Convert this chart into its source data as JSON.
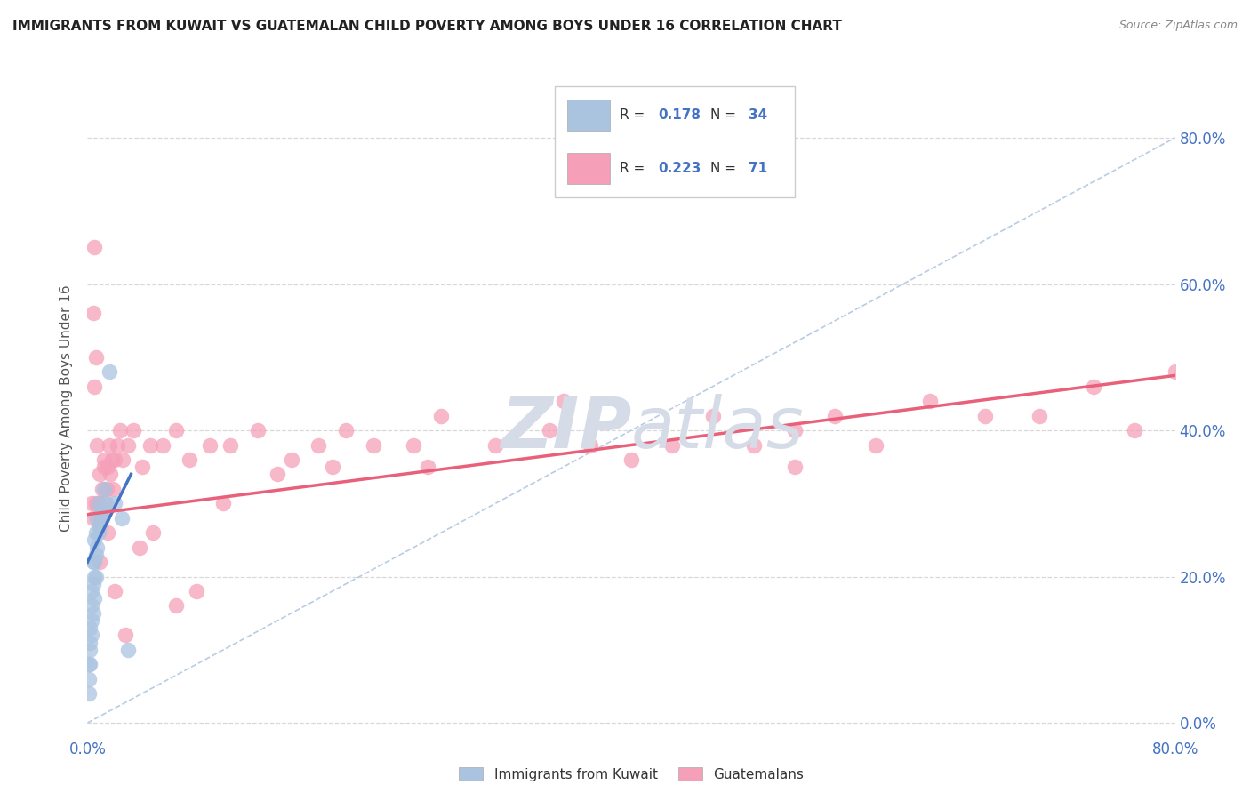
{
  "title": "IMMIGRANTS FROM KUWAIT VS GUATEMALAN CHILD POVERTY AMONG BOYS UNDER 16 CORRELATION CHART",
  "source": "Source: ZipAtlas.com",
  "ylabel": "Child Poverty Among Boys Under 16",
  "ytick_labels": [
    "0.0%",
    "20.0%",
    "40.0%",
    "60.0%",
    "80.0%"
  ],
  "ytick_values": [
    0.0,
    0.2,
    0.4,
    0.6,
    0.8
  ],
  "xtick_labels": [
    "0.0%",
    "80.0%"
  ],
  "xtick_values": [
    0.0,
    0.8
  ],
  "xlim": [
    0.0,
    0.8
  ],
  "ylim": [
    -0.02,
    0.88
  ],
  "color_kuwait": "#aac4e0",
  "color_guatemalan": "#f5a0b8",
  "line_color_kuwait": "#4472c4",
  "line_color_guatemalan": "#e8607a",
  "dashed_line_color": "#b8cce4",
  "grid_color": "#d8d8d8",
  "watermark_color": "#d5dce8",
  "kuwait_x": [
    0.001,
    0.001,
    0.001,
    0.002,
    0.002,
    0.002,
    0.002,
    0.003,
    0.003,
    0.003,
    0.003,
    0.004,
    0.004,
    0.004,
    0.005,
    0.005,
    0.005,
    0.005,
    0.006,
    0.006,
    0.006,
    0.007,
    0.007,
    0.008,
    0.008,
    0.009,
    0.01,
    0.011,
    0.012,
    0.014,
    0.016,
    0.02,
    0.025,
    0.03
  ],
  "kuwait_y": [
    0.04,
    0.06,
    0.08,
    0.08,
    0.1,
    0.11,
    0.13,
    0.12,
    0.14,
    0.16,
    0.18,
    0.15,
    0.19,
    0.22,
    0.17,
    0.2,
    0.22,
    0.25,
    0.2,
    0.23,
    0.26,
    0.24,
    0.28,
    0.26,
    0.3,
    0.27,
    0.29,
    0.28,
    0.32,
    0.3,
    0.48,
    0.3,
    0.28,
    0.1
  ],
  "guatemalan_x": [
    0.003,
    0.004,
    0.005,
    0.005,
    0.006,
    0.007,
    0.008,
    0.009,
    0.01,
    0.011,
    0.012,
    0.013,
    0.014,
    0.015,
    0.016,
    0.017,
    0.018,
    0.019,
    0.02,
    0.022,
    0.024,
    0.026,
    0.03,
    0.034,
    0.04,
    0.046,
    0.055,
    0.065,
    0.075,
    0.09,
    0.105,
    0.125,
    0.15,
    0.17,
    0.19,
    0.21,
    0.24,
    0.26,
    0.3,
    0.34,
    0.37,
    0.4,
    0.43,
    0.46,
    0.49,
    0.52,
    0.55,
    0.58,
    0.62,
    0.66,
    0.7,
    0.74,
    0.77,
    0.8,
    0.52,
    0.35,
    0.25,
    0.18,
    0.14,
    0.1,
    0.08,
    0.065,
    0.048,
    0.038,
    0.028,
    0.02,
    0.015,
    0.012,
    0.009,
    0.006,
    0.004
  ],
  "guatemalan_y": [
    0.3,
    0.56,
    0.46,
    0.65,
    0.5,
    0.38,
    0.3,
    0.34,
    0.28,
    0.32,
    0.36,
    0.3,
    0.32,
    0.35,
    0.38,
    0.34,
    0.36,
    0.32,
    0.36,
    0.38,
    0.4,
    0.36,
    0.38,
    0.4,
    0.35,
    0.38,
    0.38,
    0.4,
    0.36,
    0.38,
    0.38,
    0.4,
    0.36,
    0.38,
    0.4,
    0.38,
    0.38,
    0.42,
    0.38,
    0.4,
    0.38,
    0.36,
    0.38,
    0.42,
    0.38,
    0.4,
    0.42,
    0.38,
    0.44,
    0.42,
    0.42,
    0.46,
    0.4,
    0.48,
    0.35,
    0.44,
    0.35,
    0.35,
    0.34,
    0.3,
    0.18,
    0.16,
    0.26,
    0.24,
    0.12,
    0.18,
    0.26,
    0.35,
    0.22,
    0.3,
    0.28
  ],
  "kuwait_line_x": [
    0.0,
    0.032
  ],
  "kuwait_line_y": [
    0.22,
    0.34
  ],
  "guat_line_x": [
    0.0,
    0.8
  ],
  "guat_line_y": [
    0.285,
    0.475
  ],
  "diag_line_x": [
    0.0,
    0.8
  ],
  "diag_line_y": [
    0.0,
    0.8
  ]
}
